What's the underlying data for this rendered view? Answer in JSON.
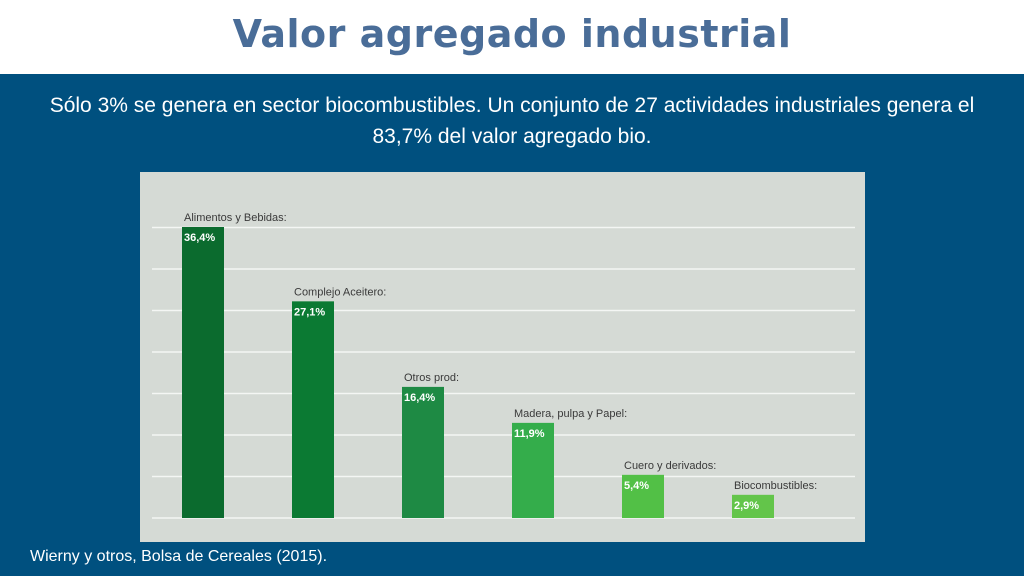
{
  "slide": {
    "title": "Valor agregado industrial",
    "subtitle": "Sólo 3% se genera en sector biocombustibles. Un conjunto de 27 actividades industriales genera el 83,7% del valor agregado bio.",
    "source": "Wierny y otros, Bolsa de Cereales (2015)."
  },
  "colors": {
    "title": "#4a6d98",
    "background": "#00507f",
    "chart_panel": "#d5dad5",
    "bar_shades": [
      "#0b6b2e",
      "#0b7a33",
      "#1e8a44",
      "#34ad4b",
      "#52c046",
      "#63c54a"
    ]
  },
  "chart_data": {
    "type": "bar",
    "title": "",
    "xlabel": "",
    "ylabel": "",
    "categories": [
      "Alimentos y Bebidas:",
      "Complejo Aceitero:",
      "Otros prod:",
      "Madera, pulpa y Papel:",
      "Cuero y derivados:",
      "Biocombustibles:"
    ],
    "values": [
      36.4,
      27.1,
      16.4,
      11.9,
      5.4,
      2.9
    ],
    "value_labels": [
      "36,4%",
      "27,1%",
      "16,4%",
      "11,9%",
      "5,4%",
      "2,9%"
    ],
    "ylim": [
      0,
      40
    ],
    "grid": true,
    "legend": "none"
  }
}
